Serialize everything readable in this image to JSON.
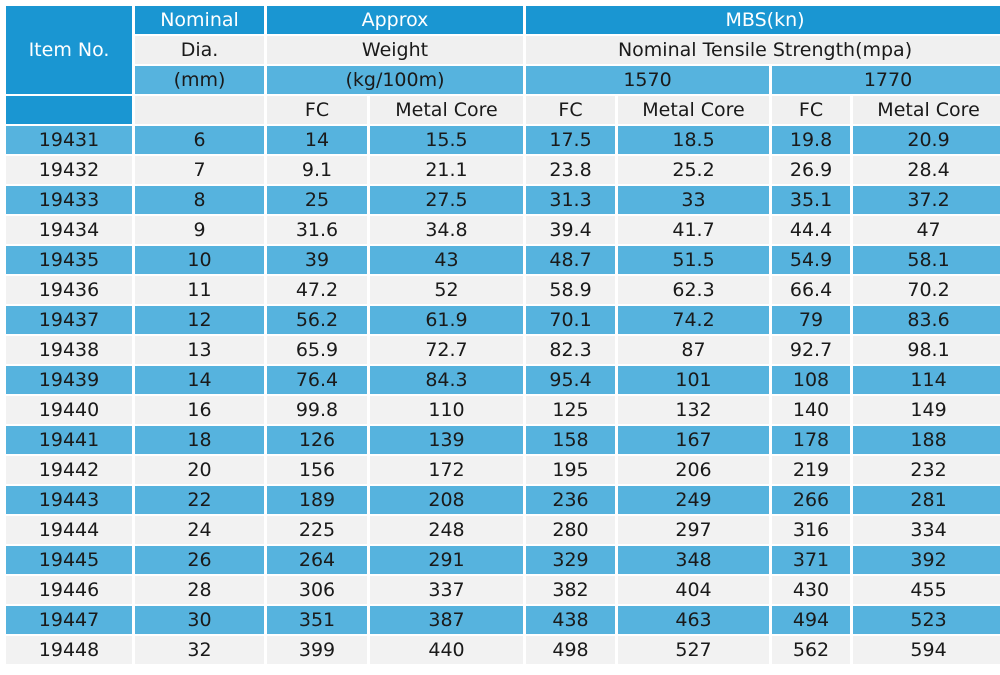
{
  "header": {
    "item_no": "Item No.",
    "nominal": "Nominal",
    "dia": "Dia.",
    "mm": "(mm)",
    "approx": "Approx",
    "weight": "Weight",
    "kg100m": "(kg/100m)",
    "mbs": "MBS(kn)",
    "nominal_tensile": "Nominal Tensile Strength(mpa)",
    "strength_1570": "1570",
    "strength_1770": "1770",
    "fc": "FC",
    "metal_core": "Metal Core"
  },
  "rows": [
    [
      "19431",
      "6",
      "14",
      "15.5",
      "17.5",
      "18.5",
      "19.8",
      "20.9"
    ],
    [
      "19432",
      "7",
      "9.1",
      "21.1",
      "23.8",
      "25.2",
      "26.9",
      "28.4"
    ],
    [
      "19433",
      "8",
      "25",
      "27.5",
      "31.3",
      "33",
      "35.1",
      "37.2"
    ],
    [
      "19434",
      "9",
      "31.6",
      "34.8",
      "39.4",
      "41.7",
      "44.4",
      "47"
    ],
    [
      "19435",
      "10",
      "39",
      "43",
      "48.7",
      "51.5",
      "54.9",
      "58.1"
    ],
    [
      "19436",
      "11",
      "47.2",
      "52",
      "58.9",
      "62.3",
      "66.4",
      "70.2"
    ],
    [
      "19437",
      "12",
      "56.2",
      "61.9",
      "70.1",
      "74.2",
      "79",
      "83.6"
    ],
    [
      "19438",
      "13",
      "65.9",
      "72.7",
      "82.3",
      "87",
      "92.7",
      "98.1"
    ],
    [
      "19439",
      "14",
      "76.4",
      "84.3",
      "95.4",
      "101",
      "108",
      "114"
    ],
    [
      "19440",
      "16",
      "99.8",
      "110",
      "125",
      "132",
      "140",
      "149"
    ],
    [
      "19441",
      "18",
      "126",
      "139",
      "158",
      "167",
      "178",
      "188"
    ],
    [
      "19442",
      "20",
      "156",
      "172",
      "195",
      "206",
      "219",
      "232"
    ],
    [
      "19443",
      "22",
      "189",
      "208",
      "236",
      "249",
      "266",
      "281"
    ],
    [
      "19444",
      "24",
      "225",
      "248",
      "280",
      "297",
      "316",
      "334"
    ],
    [
      "19445",
      "26",
      "264",
      "291",
      "329",
      "348",
      "371",
      "392"
    ],
    [
      "19446",
      "28",
      "306",
      "337",
      "382",
      "404",
      "430",
      "455"
    ],
    [
      "19447",
      "30",
      "351",
      "387",
      "438",
      "463",
      "494",
      "523"
    ],
    [
      "19448",
      "32",
      "399",
      "440",
      "498",
      "527",
      "562",
      "594"
    ]
  ]
}
